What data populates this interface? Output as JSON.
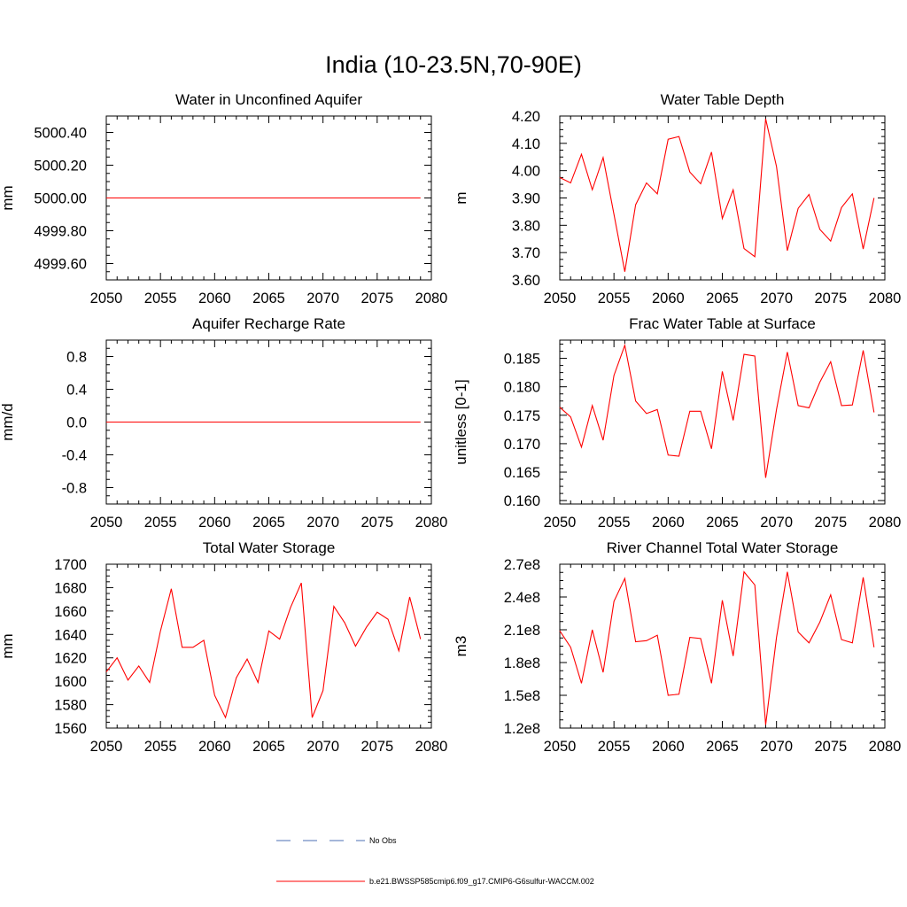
{
  "title": "India (10-23.5N,70-90E)",
  "colors": {
    "model": "#ff0000",
    "obs": "#4b6fb5",
    "axis": "#000000"
  },
  "legend": {
    "obs_label": "No Obs",
    "model_label": "b.e21.BWSSP585cmip6.f09_g17.CMIP6-G6sulfur-WACCM.002"
  },
  "chart_data": [
    {
      "type": "line",
      "title": "Water in Unconfined Aquifer",
      "ylabel": "mm",
      "xlim": [
        2050,
        2080
      ],
      "ylim": [
        4999.5,
        5000.5
      ],
      "xticks": [
        2050,
        2055,
        2060,
        2065,
        2070,
        2075,
        2080
      ],
      "xtick_labels": [
        "2050",
        "2055",
        "2060",
        "2065",
        "2070",
        "2075",
        "2080"
      ],
      "yticks": [
        4999.6,
        4999.8,
        5000.0,
        5000.2,
        5000.4
      ],
      "ytick_labels": [
        "4999.60",
        "4999.80",
        "5000.00",
        "5000.20",
        "5000.40"
      ],
      "x": [
        2050,
        2079
      ],
      "series": [
        {
          "values": [
            5000.0,
            5000.0
          ]
        }
      ]
    },
    {
      "type": "line",
      "title": "Water Table Depth",
      "ylabel": "m",
      "xlim": [
        2050,
        2080
      ],
      "ylim": [
        3.6,
        4.2
      ],
      "xticks": [
        2050,
        2055,
        2060,
        2065,
        2070,
        2075,
        2080
      ],
      "xtick_labels": [
        "2050",
        "2055",
        "2060",
        "2065",
        "2070",
        "2075",
        "2080"
      ],
      "yticks": [
        3.6,
        3.7,
        3.8,
        3.9,
        4.0,
        4.1,
        4.2
      ],
      "ytick_labels": [
        "3.60",
        "3.70",
        "3.80",
        "3.90",
        "4.00",
        "4.10",
        "4.20"
      ],
      "x": [
        2050,
        2051,
        2052,
        2053,
        2054,
        2055,
        2056,
        2057,
        2058,
        2059,
        2060,
        2061,
        2062,
        2063,
        2064,
        2065,
        2066,
        2067,
        2068,
        2069,
        2070,
        2071,
        2072,
        2073,
        2074,
        2075,
        2076,
        2077,
        2078,
        2079
      ],
      "series": [
        {
          "values": [
            3.975,
            3.955,
            4.06,
            3.93,
            4.048,
            3.84,
            3.63,
            3.875,
            3.955,
            3.915,
            4.115,
            4.125,
            3.995,
            3.952,
            4.068,
            3.825,
            3.93,
            3.715,
            3.685,
            4.19,
            4.015,
            3.707,
            3.862,
            3.913,
            3.785,
            3.742,
            3.865,
            3.915,
            3.713,
            3.9
          ]
        }
      ]
    },
    {
      "type": "line",
      "title": "Aquifer Recharge Rate",
      "ylabel": "mm/d",
      "xlim": [
        2050,
        2080
      ],
      "ylim": [
        -1.0,
        1.0
      ],
      "xticks": [
        2050,
        2055,
        2060,
        2065,
        2070,
        2075,
        2080
      ],
      "xtick_labels": [
        "2050",
        "2055",
        "2060",
        "2065",
        "2070",
        "2075",
        "2080"
      ],
      "yticks": [
        -0.8,
        -0.4,
        0.0,
        0.4,
        0.8
      ],
      "ytick_labels": [
        "-0.8",
        "-0.4",
        "0.0",
        "0.4",
        "0.8"
      ],
      "x": [
        2050,
        2079
      ],
      "series": [
        {
          "values": [
            0.0,
            0.0
          ]
        }
      ]
    },
    {
      "type": "line",
      "title": "Frac Water Table at Surface",
      "ylabel": "unitless [0-1]",
      "xlim": [
        2050,
        2080
      ],
      "ylim": [
        0.1594,
        0.1882
      ],
      "xticks": [
        2050,
        2055,
        2060,
        2065,
        2070,
        2075,
        2080
      ],
      "xtick_labels": [
        "2050",
        "2055",
        "2060",
        "2065",
        "2070",
        "2075",
        "2080"
      ],
      "yticks": [
        0.16,
        0.165,
        0.17,
        0.175,
        0.18,
        0.185
      ],
      "ytick_labels": [
        "0.160",
        "0.165",
        "0.170",
        "0.175",
        "0.180",
        "0.185"
      ],
      "x": [
        2050,
        2051,
        2052,
        2053,
        2054,
        2055,
        2056,
        2057,
        2058,
        2059,
        2060,
        2061,
        2062,
        2063,
        2064,
        2065,
        2066,
        2067,
        2068,
        2069,
        2070,
        2071,
        2072,
        2073,
        2074,
        2075,
        2076,
        2077,
        2078,
        2079
      ],
      "series": [
        {
          "values": [
            0.1764,
            0.1747,
            0.1694,
            0.1767,
            0.1706,
            0.182,
            0.1873,
            0.1775,
            0.1753,
            0.176,
            0.168,
            0.1678,
            0.1757,
            0.1757,
            0.1691,
            0.1827,
            0.1741,
            0.1857,
            0.1854,
            0.164,
            0.176,
            0.1861,
            0.1767,
            0.1763,
            0.1808,
            0.1844,
            0.1767,
            0.1768,
            0.1864,
            0.1755
          ]
        }
      ]
    },
    {
      "type": "line",
      "title": "Total Water Storage",
      "ylabel": "mm",
      "xlim": [
        2050,
        2080
      ],
      "ylim": [
        1560,
        1700
      ],
      "xticks": [
        2050,
        2055,
        2060,
        2065,
        2070,
        2075,
        2080
      ],
      "xtick_labels": [
        "2050",
        "2055",
        "2060",
        "2065",
        "2070",
        "2075",
        "2080"
      ],
      "yticks": [
        1560,
        1580,
        1600,
        1620,
        1640,
        1660,
        1680,
        1700
      ],
      "ytick_labels": [
        "1560",
        "1580",
        "1600",
        "1620",
        "1640",
        "1660",
        "1680",
        "1700"
      ],
      "x": [
        2050,
        2051,
        2052,
        2053,
        2054,
        2055,
        2056,
        2057,
        2058,
        2059,
        2060,
        2061,
        2062,
        2063,
        2064,
        2065,
        2066,
        2067,
        2068,
        2069,
        2070,
        2071,
        2072,
        2073,
        2074,
        2075,
        2076,
        2077,
        2078,
        2079
      ],
      "series": [
        {
          "values": [
            1608,
            1620,
            1601,
            1613,
            1599,
            1643,
            1679,
            1629,
            1629,
            1635,
            1588,
            1569,
            1603,
            1619,
            1599,
            1643,
            1636,
            1663,
            1684,
            1569,
            1592,
            1664,
            1650,
            1630,
            1646,
            1659,
            1653,
            1626,
            1672,
            1636
          ]
        }
      ]
    },
    {
      "type": "line",
      "title": "River Channel Total Water Storage",
      "ylabel": "m3",
      "xlim": [
        2050,
        2080
      ],
      "ylim": [
        120000000.0,
        270000000.0
      ],
      "xticks": [
        2050,
        2055,
        2060,
        2065,
        2070,
        2075,
        2080
      ],
      "xtick_labels": [
        "2050",
        "2055",
        "2060",
        "2065",
        "2070",
        "2075",
        "2080"
      ],
      "yticks": [
        120000000.0,
        150000000.0,
        180000000.0,
        210000000.0,
        240000000.0,
        270000000.0
      ],
      "ytick_labels": [
        "1.2e8",
        "1.5e8",
        "1.8e8",
        "2.1e8",
        "2.4e8",
        "2.7e8"
      ],
      "x": [
        2050,
        2051,
        2052,
        2053,
        2054,
        2055,
        2056,
        2057,
        2058,
        2059,
        2060,
        2061,
        2062,
        2063,
        2064,
        2065,
        2066,
        2067,
        2068,
        2069,
        2070,
        2071,
        2072,
        2073,
        2074,
        2075,
        2076,
        2077,
        2078,
        2079
      ],
      "series": [
        {
          "values": [
            209000000.0,
            194000000.0,
            161000000.0,
            210000000.0,
            171000000.0,
            236000000.0,
            257000000.0,
            199000000.0,
            200000000.0,
            205000000.0,
            150000000.0,
            151000000.0,
            203000000.0,
            202000000.0,
            161000000.0,
            237000000.0,
            186000000.0,
            263000000.0,
            251000000.0,
            123000000.0,
            203000000.0,
            263000000.0,
            208000000.0,
            198000000.0,
            217000000.0,
            242000000.0,
            201000000.0,
            198000000.0,
            258000000.0,
            194000000.0
          ]
        }
      ]
    }
  ]
}
